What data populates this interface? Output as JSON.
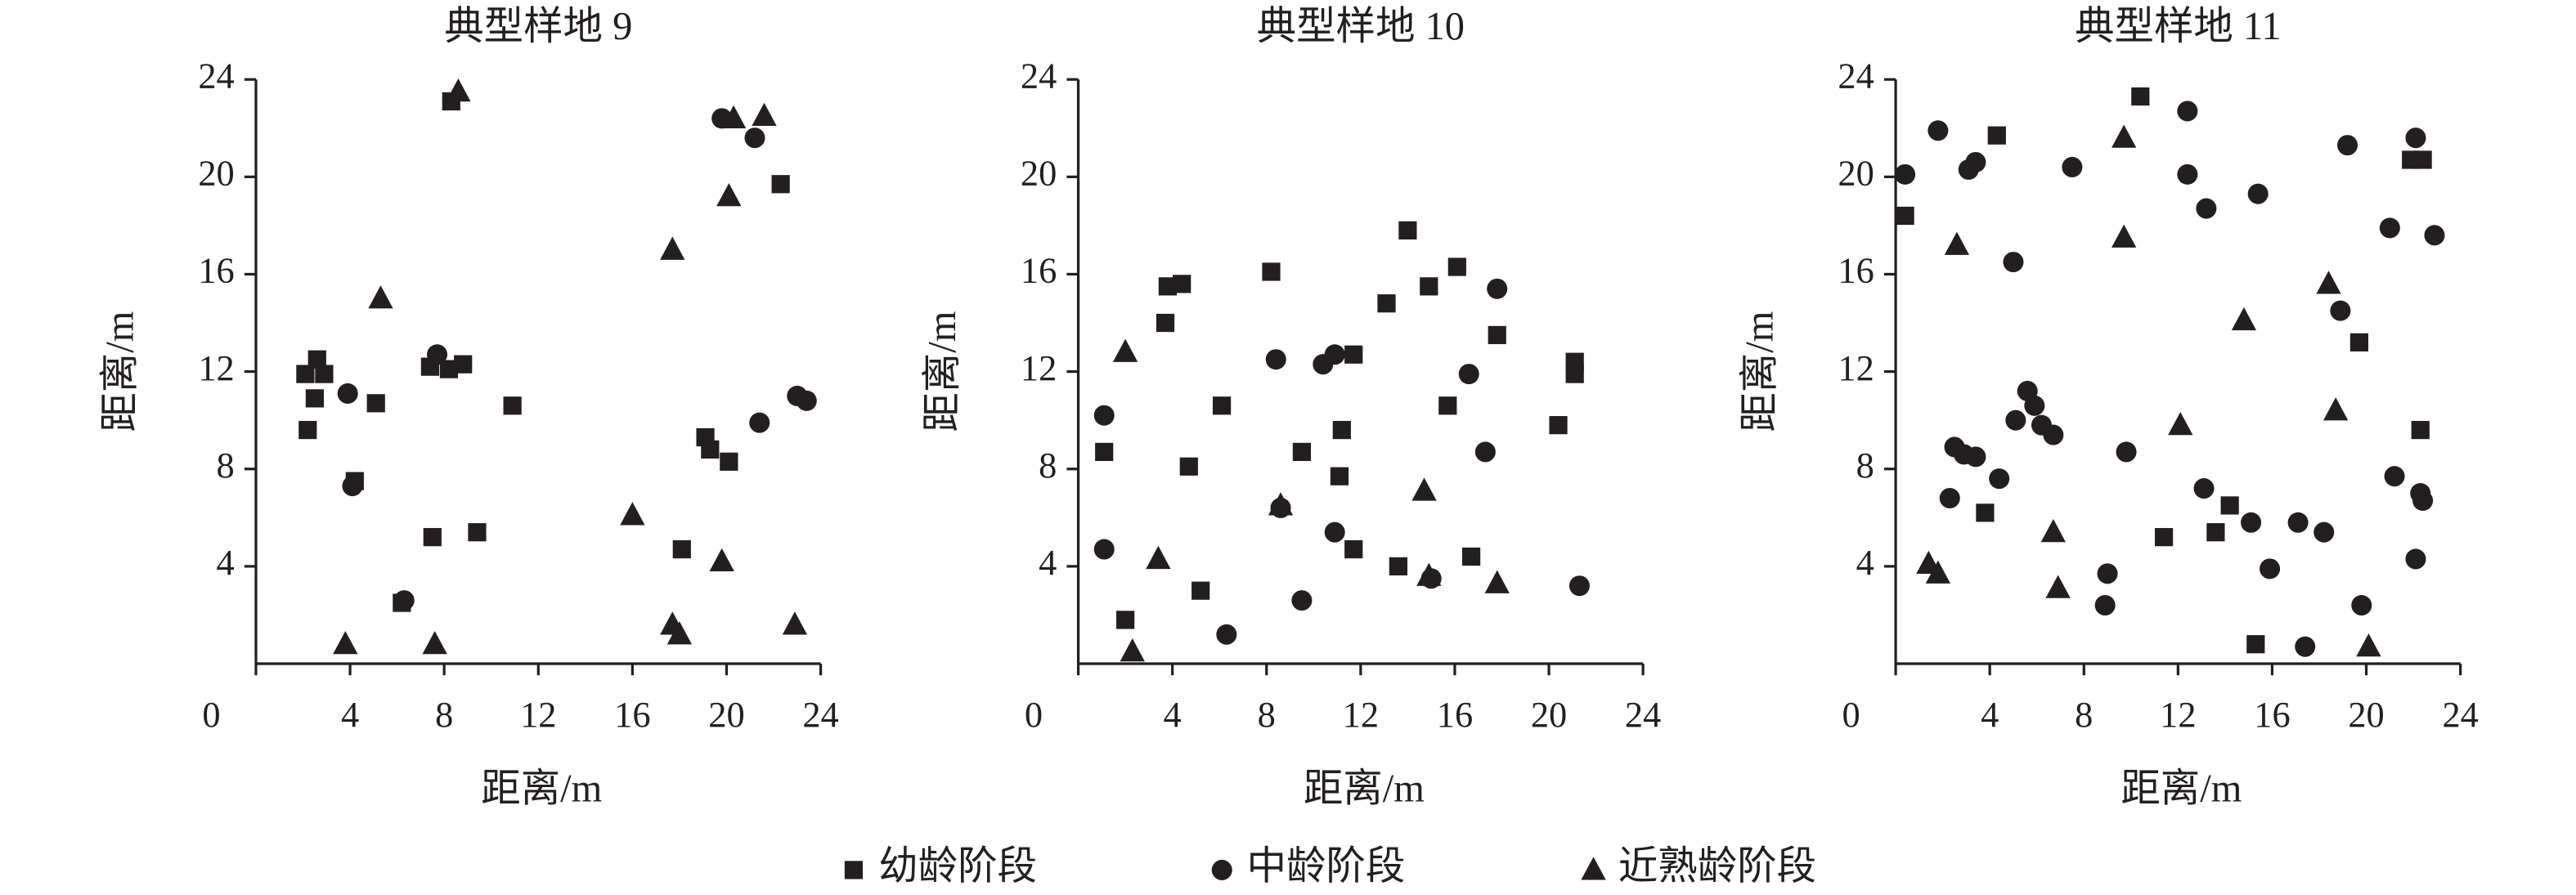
{
  "chart_data": [
    {
      "type": "scatter",
      "title": "典型样地 9",
      "xlabel": "距离/m",
      "ylabel": "距离/m",
      "xlim": [
        0,
        24
      ],
      "ylim": [
        0,
        24
      ],
      "xticks": [
        0,
        4,
        8,
        12,
        16,
        20,
        24
      ],
      "yticks": [
        4,
        8,
        12,
        16,
        20,
        24
      ],
      "series": [
        {
          "name": "幼龄阶段",
          "marker": "square",
          "color": "#231f20",
          "x": [
            2.1,
            2.6,
            2.9,
            2.5,
            2.2,
            5.1,
            4.2,
            7.4,
            8.2,
            8.8,
            8.3,
            7.5,
            9.4,
            6.2,
            10.9,
            18.1,
            19.1,
            19.3,
            20.1,
            22.3
          ],
          "y": [
            11.9,
            12.5,
            11.9,
            10.9,
            9.6,
            10.7,
            7.5,
            12.2,
            12.1,
            12.3,
            23.1,
            5.2,
            5.4,
            2.5,
            10.6,
            4.7,
            9.3,
            8.8,
            8.3,
            19.7
          ]
        },
        {
          "name": "中龄阶段",
          "marker": "circle",
          "color": "#231f20",
          "x": [
            3.9,
            4.1,
            7.7,
            6.3,
            19.8,
            21.2,
            21.4,
            23.0,
            23.4
          ],
          "y": [
            11.1,
            7.3,
            12.7,
            2.6,
            22.4,
            21.6,
            9.9,
            11.0,
            10.8
          ]
        },
        {
          "name": "近熟龄阶段",
          "marker": "triangle",
          "color": "#231f20",
          "x": [
            5.3,
            8.6,
            3.8,
            7.6,
            16.0,
            17.7,
            17.7,
            18.0,
            19.8,
            20.1,
            20.3,
            21.6,
            22.9
          ],
          "y": [
            15.0,
            23.5,
            0.8,
            0.8,
            6.1,
            17.0,
            1.6,
            1.2,
            4.2,
            19.2,
            22.4,
            22.5,
            1.6
          ]
        }
      ]
    },
    {
      "type": "scatter",
      "title": "典型样地 10",
      "xlabel": "距离/m",
      "ylabel": "距离/m",
      "xlim": [
        0,
        24
      ],
      "ylim": [
        0,
        24
      ],
      "xticks": [
        0,
        4,
        8,
        12,
        16,
        20,
        24
      ],
      "yticks": [
        4,
        8,
        12,
        16,
        20,
        24
      ],
      "series": [
        {
          "marker": "square",
          "color": "#231f20",
          "x": [
            1.1,
            2.0,
            3.8,
            4.4,
            3.7,
            4.7,
            6.1,
            5.2,
            8.2,
            9.5,
            11.2,
            11.1,
            11.7,
            11.7,
            13.1,
            14.0,
            14.9,
            16.1,
            15.7,
            16.7,
            13.6,
            17.8,
            20.4,
            21.1,
            21.1
          ],
          "y": [
            8.7,
            1.8,
            15.5,
            15.6,
            14.0,
            8.1,
            10.6,
            3.0,
            16.1,
            8.7,
            9.6,
            7.7,
            12.7,
            4.7,
            14.8,
            17.8,
            15.5,
            16.3,
            10.6,
            4.4,
            4.0,
            13.5,
            9.8,
            12.4,
            11.9
          ]
        },
        {
          "marker": "circle",
          "color": "#231f20",
          "x": [
            1.1,
            1.1,
            6.3,
            8.4,
            8.6,
            9.5,
            10.4,
            10.9,
            10.9,
            15.0,
            16.6,
            17.3,
            17.8,
            21.3
          ],
          "y": [
            10.2,
            4.7,
            1.2,
            12.5,
            6.4,
            2.6,
            12.3,
            12.7,
            5.4,
            3.5,
            11.9,
            8.7,
            15.4,
            3.2
          ]
        },
        {
          "marker": "triangle",
          "color": "#231f20",
          "x": [
            2.0,
            2.3,
            3.4,
            8.6,
            14.7,
            14.9,
            17.8
          ],
          "y": [
            12.8,
            0.5,
            4.3,
            6.5,
            7.1,
            3.6,
            3.3
          ]
        }
      ]
    },
    {
      "type": "scatter",
      "title": "典型样地 11",
      "xlabel": "距离/m",
      "ylabel": "距离/m",
      "xlim": [
        0,
        24
      ],
      "ylim": [
        0,
        24
      ],
      "xticks": [
        0,
        4,
        8,
        12,
        16,
        20,
        24
      ],
      "yticks": [
        4,
        8,
        12,
        16,
        20,
        24
      ],
      "series": [
        {
          "marker": "square",
          "color": "#231f20",
          "x": [
            0.4,
            4.3,
            3.8,
            10.4,
            11.4,
            13.6,
            14.2,
            15.3,
            19.7,
            21.9,
            22.4,
            22.3
          ],
          "y": [
            18.4,
            21.7,
            6.2,
            23.3,
            5.2,
            5.4,
            6.5,
            0.8,
            13.2,
            20.7,
            20.7,
            9.6
          ]
        },
        {
          "marker": "circle",
          "color": "#231f20",
          "x": [
            0.4,
            1.8,
            3.1,
            3.4,
            5.0,
            7.5,
            12.4,
            12.4,
            13.2,
            15.4,
            19.2,
            21.0,
            22.1,
            22.9,
            5.6,
            5.9,
            6.2,
            6.7,
            5.1,
            2.5,
            2.9,
            3.4,
            2.3,
            4.4,
            9.8,
            13.1,
            15.1,
            15.9,
            17.1,
            17.4,
            18.2,
            18.9,
            19.8,
            21.2,
            22.1,
            22.3,
            22.4,
            8.9,
            9.0
          ],
          "y": [
            20.1,
            21.9,
            20.3,
            20.6,
            16.5,
            20.4,
            22.7,
            20.1,
            18.7,
            19.3,
            21.3,
            17.9,
            21.6,
            17.6,
            11.2,
            10.6,
            9.8,
            9.4,
            10.0,
            8.9,
            8.6,
            8.5,
            6.8,
            7.6,
            8.7,
            7.2,
            5.8,
            3.9,
            5.8,
            0.7,
            5.4,
            14.5,
            2.4,
            7.7,
            4.3,
            7.0,
            6.7,
            2.4,
            3.7
          ]
        },
        {
          "marker": "triangle",
          "color": "#231f20",
          "x": [
            1.4,
            1.8,
            2.6,
            6.7,
            6.9,
            9.7,
            9.7,
            12.1,
            14.8,
            18.4,
            18.7,
            20.1
          ],
          "y": [
            4.1,
            3.7,
            17.2,
            5.4,
            3.1,
            21.6,
            17.5,
            9.8,
            14.1,
            15.6,
            10.4,
            0.7
          ]
        }
      ]
    }
  ]
}
